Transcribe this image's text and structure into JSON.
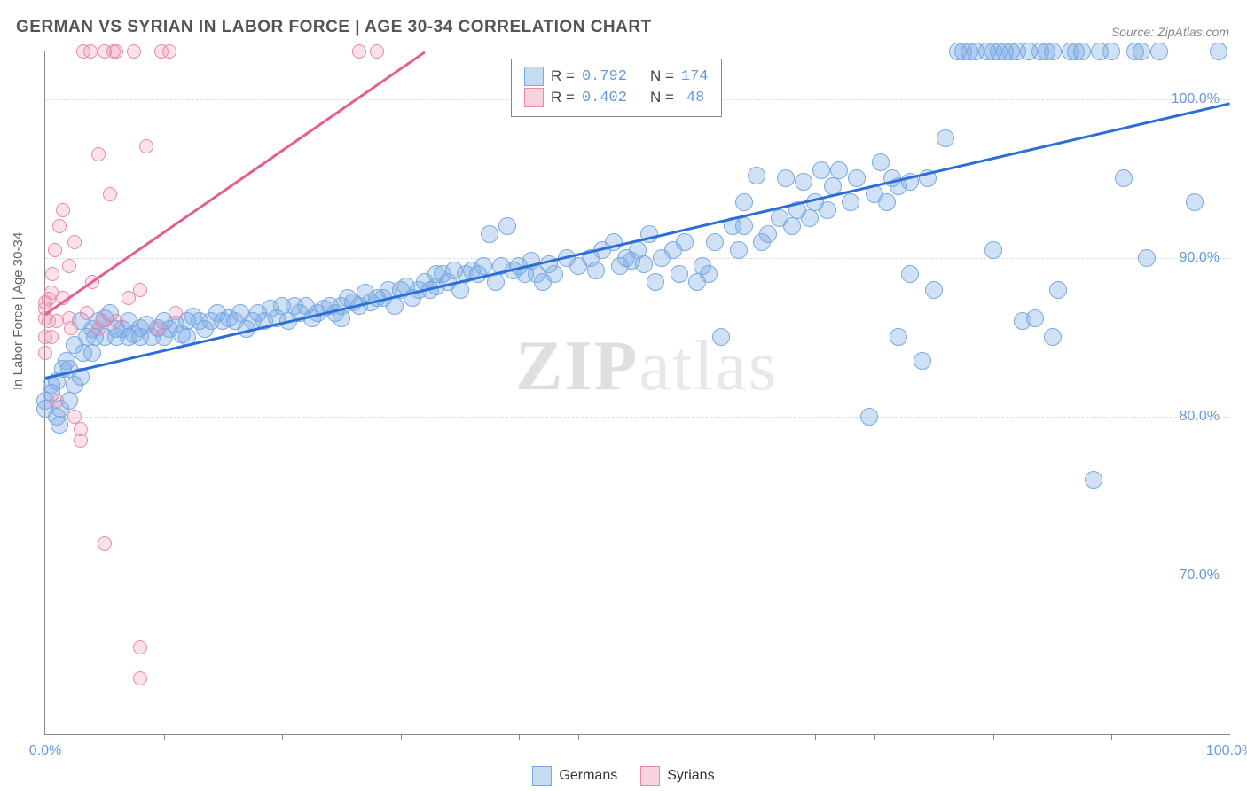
{
  "title": "GERMAN VS SYRIAN IN LABOR FORCE | AGE 30-34 CORRELATION CHART",
  "source": "Source: ZipAtlas.com",
  "ylabel": "In Labor Force | Age 30-34",
  "watermark_bold": "ZIP",
  "watermark_light": "atlas",
  "chart": {
    "xlim": [
      0,
      100
    ],
    "ylim": [
      60,
      103
    ],
    "y_ticks": [
      70,
      80,
      90,
      100
    ],
    "y_tick_labels": [
      "70.0%",
      "80.0%",
      "90.0%",
      "100.0%"
    ],
    "x_major_ticks": [
      0,
      100
    ],
    "x_major_labels": [
      "0.0%",
      "100.0%"
    ],
    "x_minor_ticks": [
      10,
      20,
      30,
      40,
      45,
      60,
      65,
      70,
      80,
      90
    ],
    "grid_color": "#dddddd",
    "axis_color": "#888888",
    "tick_label_color": "#6699dd",
    "background": "#ffffff",
    "marker_radius_main": 10,
    "marker_radius_small": 8,
    "marker_stroke": 1.5,
    "series": [
      {
        "name": "Germans",
        "fill": "rgba(120,170,230,0.35)",
        "stroke": "#7aa9e0",
        "swatch_fill": "#c5dbf2",
        "swatch_border": "#7aa9e0",
        "R": "0.792",
        "N": "174",
        "reg_color": "#2b6fd6",
        "reg_x1": 0,
        "reg_y1": 82.5,
        "reg_x2": 100,
        "reg_y2": 99.8,
        "points": [
          [
            0,
            80.5
          ],
          [
            0,
            81
          ],
          [
            0.5,
            81.5
          ],
          [
            0.5,
            82
          ],
          [
            1,
            82.2
          ],
          [
            1,
            80
          ],
          [
            1.2,
            79.5
          ],
          [
            1.3,
            80.5
          ],
          [
            1.5,
            83
          ],
          [
            1.8,
            83.5
          ],
          [
            2,
            81
          ],
          [
            2,
            83
          ],
          [
            2.5,
            82
          ],
          [
            2.5,
            84.5
          ],
          [
            3,
            82.5
          ],
          [
            3,
            86
          ],
          [
            3.2,
            84
          ],
          [
            3.5,
            85
          ],
          [
            4,
            84
          ],
          [
            4,
            85.5
          ],
          [
            4.2,
            85
          ],
          [
            4.5,
            86
          ],
          [
            5,
            85
          ],
          [
            5,
            86.2
          ],
          [
            5.5,
            86.5
          ],
          [
            6,
            85
          ],
          [
            6,
            85.5
          ],
          [
            6.5,
            85.5
          ],
          [
            7,
            85
          ],
          [
            7,
            86
          ],
          [
            7.5,
            85.2
          ],
          [
            8,
            85
          ],
          [
            8,
            85.6
          ],
          [
            8.5,
            85.8
          ],
          [
            9,
            85
          ],
          [
            9.5,
            85.6
          ],
          [
            10,
            86
          ],
          [
            10,
            85
          ],
          [
            10.5,
            85.5
          ],
          [
            11,
            85.8
          ],
          [
            11.5,
            85.2
          ],
          [
            12,
            85
          ],
          [
            12,
            86
          ],
          [
            12.5,
            86.3
          ],
          [
            13,
            86
          ],
          [
            13.5,
            85.5
          ],
          [
            14,
            86
          ],
          [
            14.5,
            86.5
          ],
          [
            15,
            86
          ],
          [
            15.5,
            86.2
          ],
          [
            16,
            86
          ],
          [
            16.5,
            86.5
          ],
          [
            17,
            85.5
          ],
          [
            17.5,
            86
          ],
          [
            18,
            86.5
          ],
          [
            18.5,
            86
          ],
          [
            19,
            86.8
          ],
          [
            19.5,
            86.2
          ],
          [
            20,
            87
          ],
          [
            20.5,
            86
          ],
          [
            21,
            87
          ],
          [
            21.5,
            86.5
          ],
          [
            22,
            87
          ],
          [
            22.5,
            86.2
          ],
          [
            23,
            86.5
          ],
          [
            23.5,
            86.8
          ],
          [
            24,
            87
          ],
          [
            24.5,
            86.5
          ],
          [
            25,
            87
          ],
          [
            25,
            86.2
          ],
          [
            25.5,
            87.5
          ],
          [
            26,
            87.2
          ],
          [
            26.5,
            87
          ],
          [
            27,
            87.8
          ],
          [
            27.5,
            87.2
          ],
          [
            28,
            87.5
          ],
          [
            28.5,
            87.5
          ],
          [
            29,
            88
          ],
          [
            29.5,
            87
          ],
          [
            30,
            88
          ],
          [
            30.5,
            88.2
          ],
          [
            31,
            87.5
          ],
          [
            31.5,
            88
          ],
          [
            32,
            88.5
          ],
          [
            32.5,
            88
          ],
          [
            33,
            89
          ],
          [
            33,
            88.2
          ],
          [
            33.5,
            89
          ],
          [
            34,
            88.5
          ],
          [
            34.5,
            89.2
          ],
          [
            35,
            88
          ],
          [
            35.5,
            89
          ],
          [
            36,
            89.2
          ],
          [
            36.5,
            89
          ],
          [
            37,
            89.5
          ],
          [
            37.5,
            91.5
          ],
          [
            38,
            88.5
          ],
          [
            38.5,
            89.5
          ],
          [
            39,
            92
          ],
          [
            39.5,
            89.2
          ],
          [
            40,
            89.5
          ],
          [
            40.5,
            89
          ],
          [
            41,
            89.8
          ],
          [
            41.5,
            89
          ],
          [
            42,
            88.5
          ],
          [
            42.5,
            89.6
          ],
          [
            43,
            89
          ],
          [
            44,
            90
          ],
          [
            45,
            89.5
          ],
          [
            46,
            90
          ],
          [
            46.5,
            89.2
          ],
          [
            47,
            90.5
          ],
          [
            48,
            91
          ],
          [
            48.5,
            89.5
          ],
          [
            49,
            90
          ],
          [
            49.5,
            89.8
          ],
          [
            50,
            90.5
          ],
          [
            50.5,
            89.6
          ],
          [
            51,
            91.5
          ],
          [
            51.5,
            88.5
          ],
          [
            52,
            90
          ],
          [
            53,
            90.5
          ],
          [
            53.5,
            89
          ],
          [
            54,
            91
          ],
          [
            55,
            88.5
          ],
          [
            55.5,
            89.5
          ],
          [
            56,
            89
          ],
          [
            56.5,
            91
          ],
          [
            57,
            85
          ],
          [
            58,
            92
          ],
          [
            58.5,
            90.5
          ],
          [
            59,
            92
          ],
          [
            59,
            93.5
          ],
          [
            60,
            95.2
          ],
          [
            60.5,
            91
          ],
          [
            61,
            91.5
          ],
          [
            62,
            92.5
          ],
          [
            62.5,
            95
          ],
          [
            63,
            92
          ],
          [
            63.5,
            93
          ],
          [
            64,
            94.8
          ],
          [
            64.5,
            92.5
          ],
          [
            65,
            93.5
          ],
          [
            65.5,
            95.5
          ],
          [
            66,
            93
          ],
          [
            66.5,
            94.5
          ],
          [
            67,
            95.5
          ],
          [
            68,
            93.5
          ],
          [
            68.5,
            95
          ],
          [
            69.5,
            80
          ],
          [
            70,
            94
          ],
          [
            70.5,
            96
          ],
          [
            71,
            93.5
          ],
          [
            71.5,
            95
          ],
          [
            72,
            94.5
          ],
          [
            72,
            85
          ],
          [
            73,
            94.8
          ],
          [
            73,
            89
          ],
          [
            74,
            83.5
          ],
          [
            74.5,
            95
          ],
          [
            75,
            88
          ],
          [
            76,
            97.5
          ],
          [
            77,
            103
          ],
          [
            77.5,
            103
          ],
          [
            78,
            103
          ],
          [
            78.5,
            103
          ],
          [
            79.5,
            103
          ],
          [
            80,
            103
          ],
          [
            80,
            90.5
          ],
          [
            80.5,
            103
          ],
          [
            81,
            103
          ],
          [
            81.5,
            103
          ],
          [
            82,
            103
          ],
          [
            82.5,
            86
          ],
          [
            83,
            103
          ],
          [
            83.5,
            86.2
          ],
          [
            84,
            103
          ],
          [
            84.5,
            103
          ],
          [
            85,
            103
          ],
          [
            85,
            85
          ],
          [
            85.5,
            88
          ],
          [
            86.5,
            103
          ],
          [
            87,
            103
          ],
          [
            87.5,
            103
          ],
          [
            88.5,
            76
          ],
          [
            89,
            103
          ],
          [
            90,
            103
          ],
          [
            91,
            95
          ],
          [
            92,
            103
          ],
          [
            92.5,
            103
          ],
          [
            93,
            90
          ],
          [
            94,
            103
          ],
          [
            97,
            93.5
          ],
          [
            99,
            103
          ]
        ]
      },
      {
        "name": "Syrians",
        "fill": "rgba(240,140,170,0.25)",
        "stroke": "#e988aa",
        "swatch_fill": "#f7d3de",
        "swatch_border": "#e988aa",
        "R": "0.402",
        "N": "48",
        "reg_color": "#e26091",
        "reg_x1": 0,
        "reg_y1": 86.5,
        "reg_x2": 32,
        "reg_y2": 103,
        "points": [
          [
            0,
            84
          ],
          [
            0,
            85
          ],
          [
            0,
            86.2
          ],
          [
            0,
            86.8
          ],
          [
            0,
            87.2
          ],
          [
            0.3,
            86
          ],
          [
            0.3,
            87.4
          ],
          [
            0.5,
            87.8
          ],
          [
            0.5,
            85
          ],
          [
            0.6,
            89
          ],
          [
            0.8,
            90.5
          ],
          [
            1,
            86
          ],
          [
            1,
            81
          ],
          [
            1.2,
            92
          ],
          [
            1.5,
            87.5
          ],
          [
            1.5,
            93
          ],
          [
            2,
            86.2
          ],
          [
            2,
            89.5
          ],
          [
            2.2,
            85.6
          ],
          [
            2.5,
            80
          ],
          [
            2.5,
            91
          ],
          [
            3,
            79.2
          ],
          [
            3,
            78.5
          ],
          [
            3.2,
            103
          ],
          [
            3.5,
            86.5
          ],
          [
            3.8,
            103
          ],
          [
            4,
            88.5
          ],
          [
            4.5,
            85.5
          ],
          [
            4.5,
            96.5
          ],
          [
            4.8,
            86
          ],
          [
            5,
            72
          ],
          [
            5,
            103
          ],
          [
            5.5,
            94
          ],
          [
            5.8,
            103
          ],
          [
            6,
            86
          ],
          [
            6,
            103
          ],
          [
            7,
            87.5
          ],
          [
            7.5,
            103
          ],
          [
            8,
            88
          ],
          [
            8,
            63.5
          ],
          [
            8,
            65.5
          ],
          [
            8.5,
            97
          ],
          [
            9.5,
            85.5
          ],
          [
            9.8,
            103
          ],
          [
            10.5,
            103
          ],
          [
            11,
            86.5
          ],
          [
            26.5,
            103
          ],
          [
            28,
            103
          ]
        ]
      }
    ]
  },
  "legend_series1": "Germans",
  "legend_series2": "Syrians",
  "info_r_label": "R =",
  "info_n_label": "N ="
}
